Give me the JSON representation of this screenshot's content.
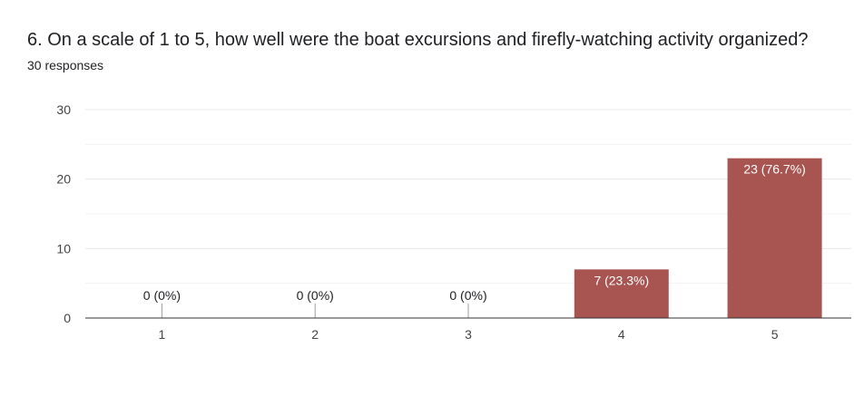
{
  "header": {
    "title": "6. On a scale of 1 to 5, how well were the boat excursions and firefly-watching activity organized?",
    "subtitle": "30 responses"
  },
  "chart_data": {
    "type": "bar",
    "title": "6. On a scale of 1 to 5, how well were the boat excursions and firefly-watching activity organized?",
    "subtitle": "30 responses",
    "categories": [
      "1",
      "2",
      "3",
      "4",
      "5"
    ],
    "values": [
      0,
      0,
      0,
      7,
      23
    ],
    "data_labels": [
      "0 (0%)",
      "0 (0%)",
      "0 (0%)",
      "7 (23.3%)",
      "23 (76.7%)"
    ],
    "y_ticks": [
      0,
      10,
      20,
      30
    ],
    "ylim": [
      0,
      30
    ],
    "xlabel": "",
    "ylabel": "",
    "grid": true,
    "bar_color": "#a85451",
    "gridline_color": "#e8e8e8",
    "axis_color": "#333333"
  }
}
